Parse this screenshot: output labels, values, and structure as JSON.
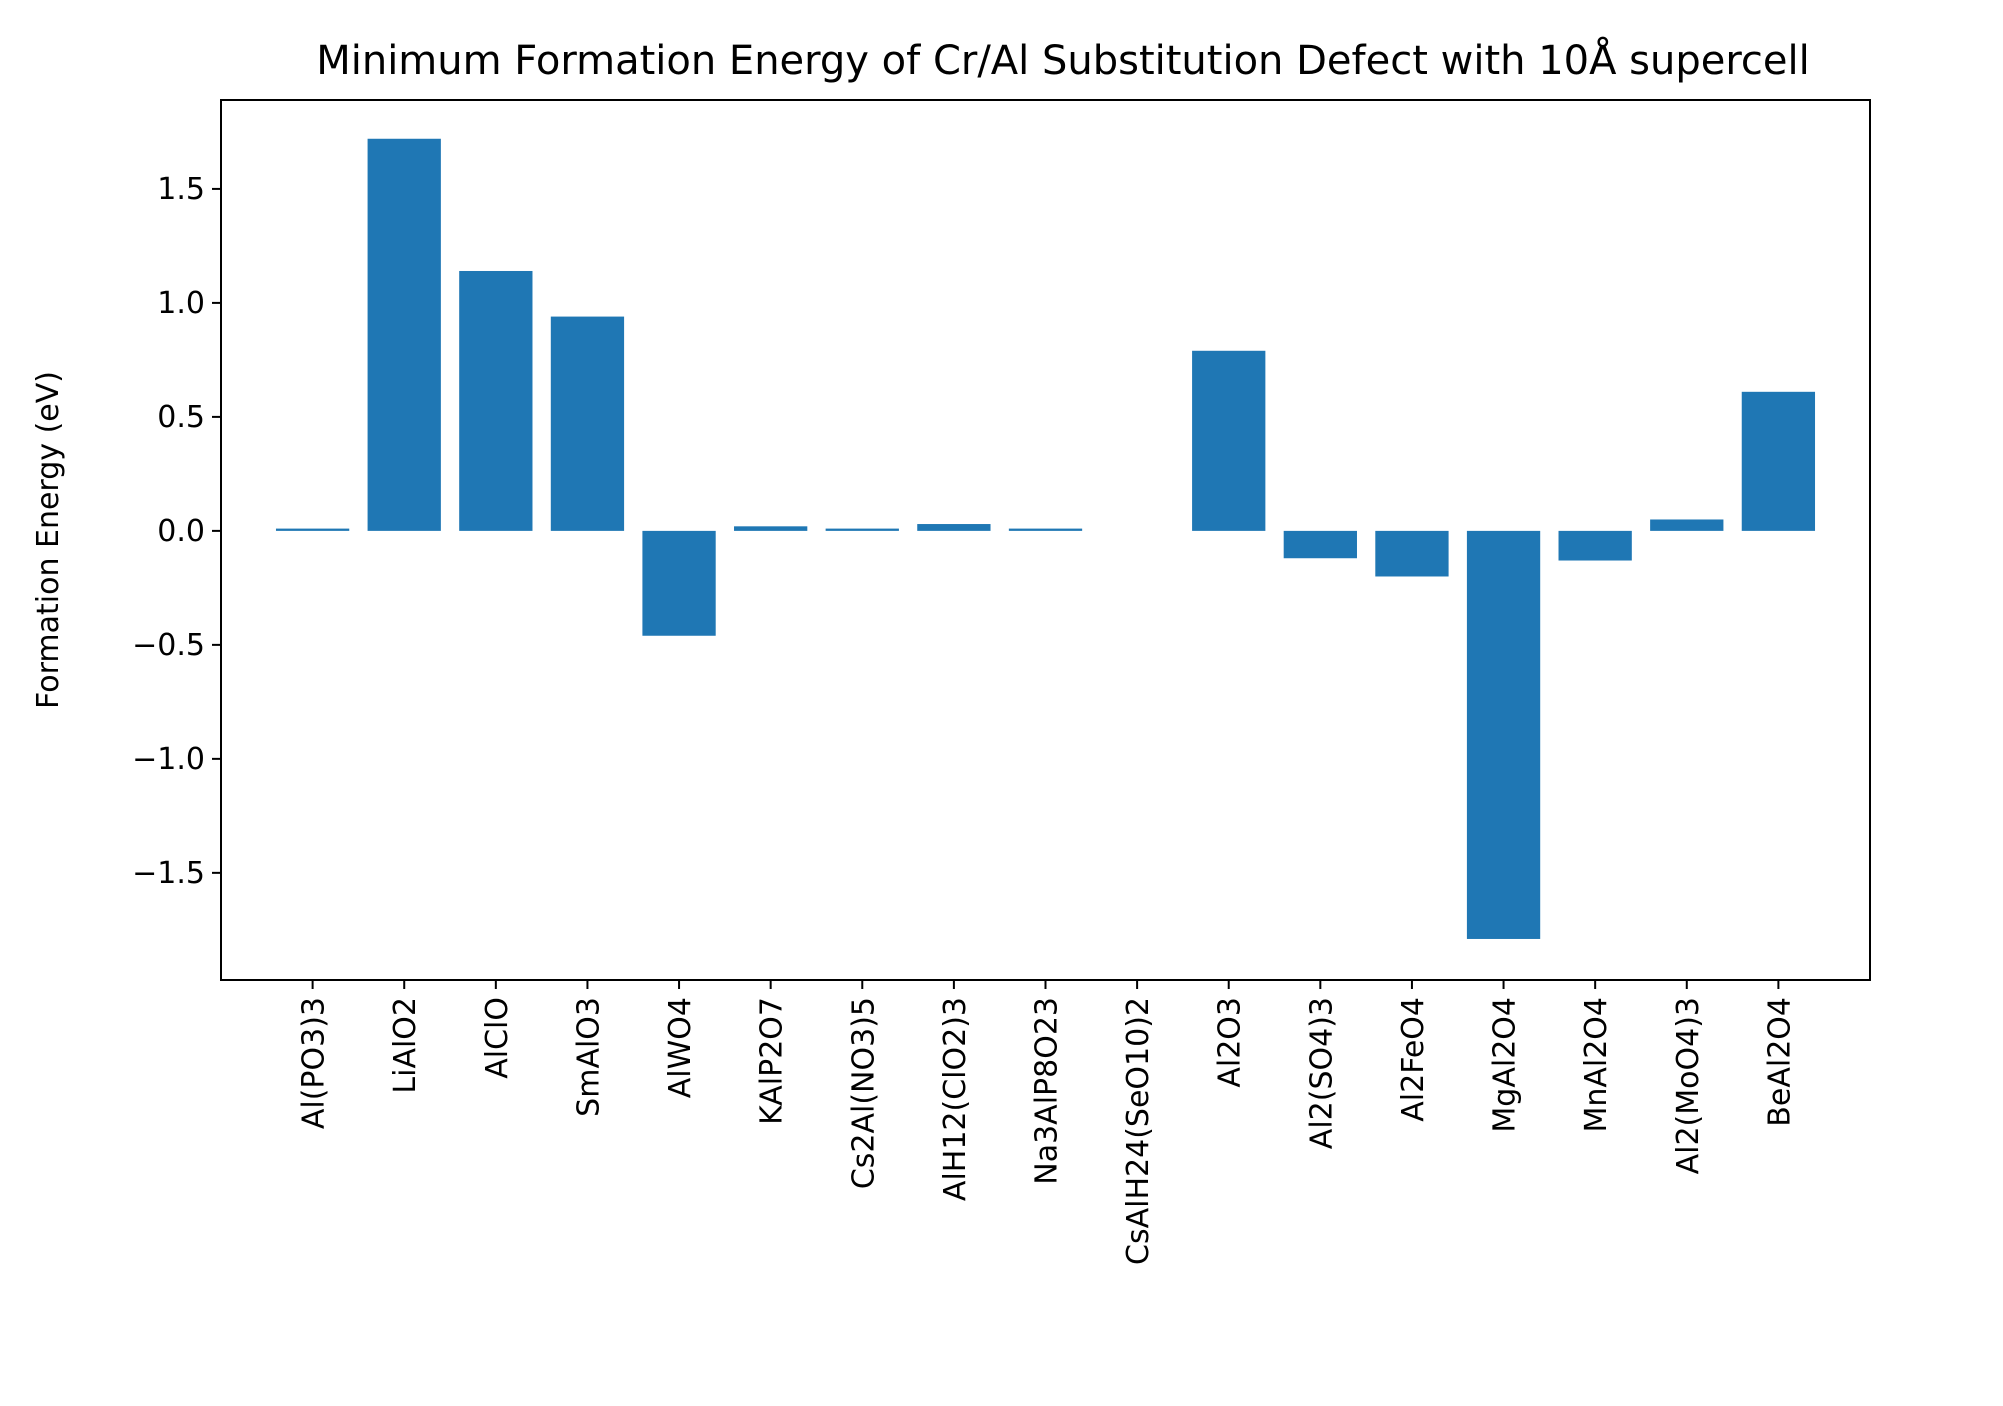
{
  "chart_data": {
    "type": "bar",
    "title": "Minimum Formation Energy of Cr/Al Substitution Defect with 10Å supercell",
    "xlabel": "",
    "ylabel": "Formation Energy (eV)",
    "categories": [
      "Al(PO3)3",
      "LiAlO2",
      "AlClO",
      "SmAlO3",
      "AlWO4",
      "KAlP2O7",
      "Cs2Al(NO3)5",
      "AlH12(ClO2)3",
      "Na3AlP8O23",
      "CsAlH24(SeO10)2",
      "Al2O3",
      "Al2(SO4)3",
      "Al2FeO4",
      "MgAl2O4",
      "MnAl2O4",
      "Al2(MoO4)3",
      "BeAl2O4"
    ],
    "values": [
      0.01,
      1.72,
      1.14,
      0.94,
      -0.46,
      0.02,
      0.01,
      0.03,
      0.01,
      0.0,
      0.79,
      -0.12,
      -0.2,
      -1.79,
      -0.13,
      0.05,
      0.61
    ],
    "ylim": [
      -1.97,
      1.89
    ],
    "yticks": [
      -1.5,
      -1.0,
      -0.5,
      0.0,
      0.5,
      1.0,
      1.5
    ],
    "ytick_labels": [
      "−1.5",
      "−1.0",
      "−0.5",
      "0.0",
      "0.5",
      "1.0",
      "1.5"
    ],
    "bar_color": "#1f77b4",
    "grid": false,
    "legend": "none"
  }
}
